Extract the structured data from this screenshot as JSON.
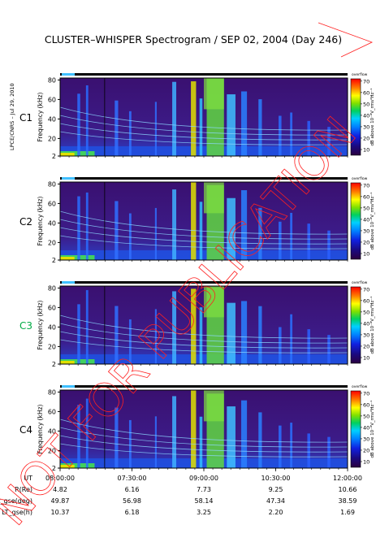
{
  "chart_data": {
    "type": "heatmap",
    "title": "CLUSTER–WHISPER Spectrogram / SEP 02, 2004 (Day 246)",
    "credit": "LPCE/CNRS – Jul 29, 2010",
    "watermark": "NOT FOR PUBLICATION",
    "ylabel": "Frequency (kHz)",
    "yticks": [
      2,
      20,
      40,
      60,
      80
    ],
    "ylim": [
      2,
      82
    ],
    "colorbar": {
      "label": "dB above 10⁻⁸V_rms²Hz⁻¹",
      "header": "overflow",
      "ticks": [
        10,
        20,
        30,
        40,
        50,
        60,
        70
      ],
      "range": [
        5,
        72
      ]
    },
    "panels": [
      {
        "name": "C1",
        "label_color": "#000000"
      },
      {
        "name": "C2",
        "label_color": "#000000"
      },
      {
        "name": "C3",
        "label_color": "#00aa44"
      },
      {
        "name": "C4",
        "label_color": "#000000"
      }
    ],
    "time_axis": {
      "row_labels": [
        "UT",
        "R(Re)",
        "Lat_gse(deg)",
        "LT_gse(h)"
      ],
      "columns": [
        {
          "UT": "08:00:00",
          "R": "4.82",
          "Lat": "49.87",
          "LT": "10.37"
        },
        {
          "UT": "07:30:00",
          "R": "6.16",
          "Lat": "56.98",
          "LT": "6.18"
        },
        {
          "UT": "09:00:00",
          "R": "7.73",
          "Lat": "58.14",
          "LT": "3.25"
        },
        {
          "UT": "10:30:00",
          "R": "9.25",
          "Lat": "47.34",
          "LT": "2.20"
        },
        {
          "UT": "12:00:00",
          "R": "10.66",
          "Lat": "38.59",
          "LT": "1.69"
        }
      ]
    }
  }
}
